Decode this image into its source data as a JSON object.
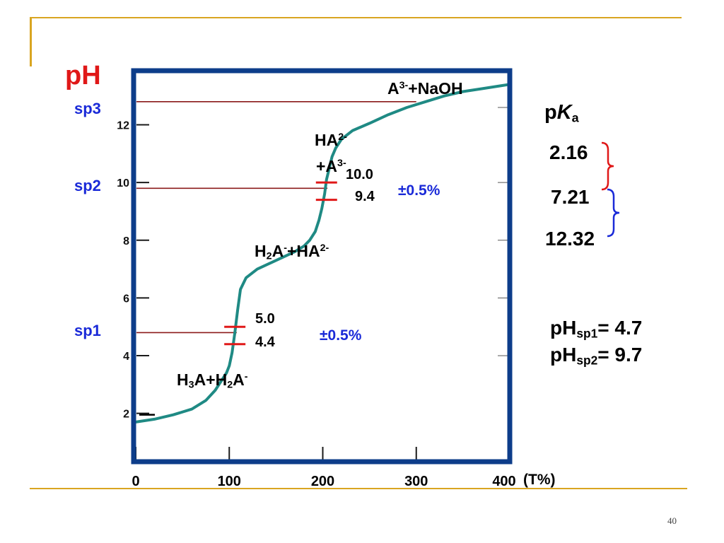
{
  "slide": {
    "page_number": "40",
    "ph_title": "pH",
    "x_unit": "(T%)",
    "colors": {
      "gold": "#d9a521",
      "frame": "#0d3d8a",
      "curve": "#1f8a84",
      "marker": "#e01818",
      "sp_line": "#8b1a1a",
      "blue": "#1a2ad8",
      "red": "#e01818"
    }
  },
  "sp_labels": [
    "sp3",
    "sp2",
    "sp1"
  ],
  "regions": {
    "a3_naoh": {
      "base": "A",
      "sup": "3-",
      "rest": "+NaOH"
    },
    "ha2_a3": {
      "line1_base": "HA",
      "line1_sup": "2-",
      "line2_prefix": "+A",
      "line2_sup": "3-"
    },
    "h2a_ha2": {
      "p1": "H",
      "s1": "2",
      "p2": "A",
      "s2": "-",
      "p3": "+HA",
      "s3": "2-"
    },
    "h3a_h2a": {
      "p1": "H",
      "s1": "3",
      "p2": "A+H",
      "s2": "2",
      "p3": "A",
      "s3": "-"
    }
  },
  "markers": {
    "sp2_upper": "10.0",
    "sp2_lower": "9.4",
    "sp2_tol": "±0.5%",
    "sp1_upper": "5.0",
    "sp1_lower": "4.4",
    "sp1_tol": "±0.5%"
  },
  "pka": {
    "title_p": "p",
    "title_K": "K",
    "title_sub": "a",
    "values": [
      "2.16",
      "7.21",
      "12.32"
    ]
  },
  "ph_sp": {
    "line1": {
      "p": "pH",
      "sub": "sp1",
      "rest": "= 4.7"
    },
    "line2": {
      "p": "pH",
      "sub": "sp2",
      "rest": "= 9.7"
    }
  },
  "chart_data": {
    "type": "line",
    "title": "",
    "xlabel": "(T%)",
    "ylabel": "pH",
    "x_ticks": [
      "0",
      "100",
      "200",
      "300",
      "400"
    ],
    "y_ticks": [
      "2",
      "4",
      "6",
      "8",
      "10",
      "12"
    ],
    "xlim": [
      0,
      400
    ],
    "ylim": [
      0.4,
      13.8
    ],
    "series": [
      {
        "x": [
          0,
          20,
          40,
          60,
          75,
          85,
          92,
          97,
          100,
          103,
          106,
          109,
          112,
          118,
          130,
          150,
          170,
          180,
          186,
          192,
          196,
          199,
          202,
          204,
          207,
          210,
          214,
          220,
          232,
          250,
          270,
          290,
          310,
          330,
          350,
          370,
          390,
          400
        ],
        "y": [
          1.7,
          1.8,
          1.95,
          2.15,
          2.45,
          2.8,
          3.15,
          3.4,
          3.65,
          4.1,
          4.8,
          5.6,
          6.3,
          6.7,
          7.0,
          7.3,
          7.6,
          7.8,
          8.0,
          8.3,
          8.7,
          9.1,
          9.6,
          10.1,
          10.5,
          10.9,
          11.2,
          11.5,
          11.8,
          12.05,
          12.35,
          12.6,
          12.8,
          13.0,
          13.15,
          13.25,
          13.35,
          13.4
        ]
      }
    ],
    "reference_lines_ph": [
      12.8,
      9.8,
      4.8
    ],
    "grid": false,
    "legend": "none"
  }
}
